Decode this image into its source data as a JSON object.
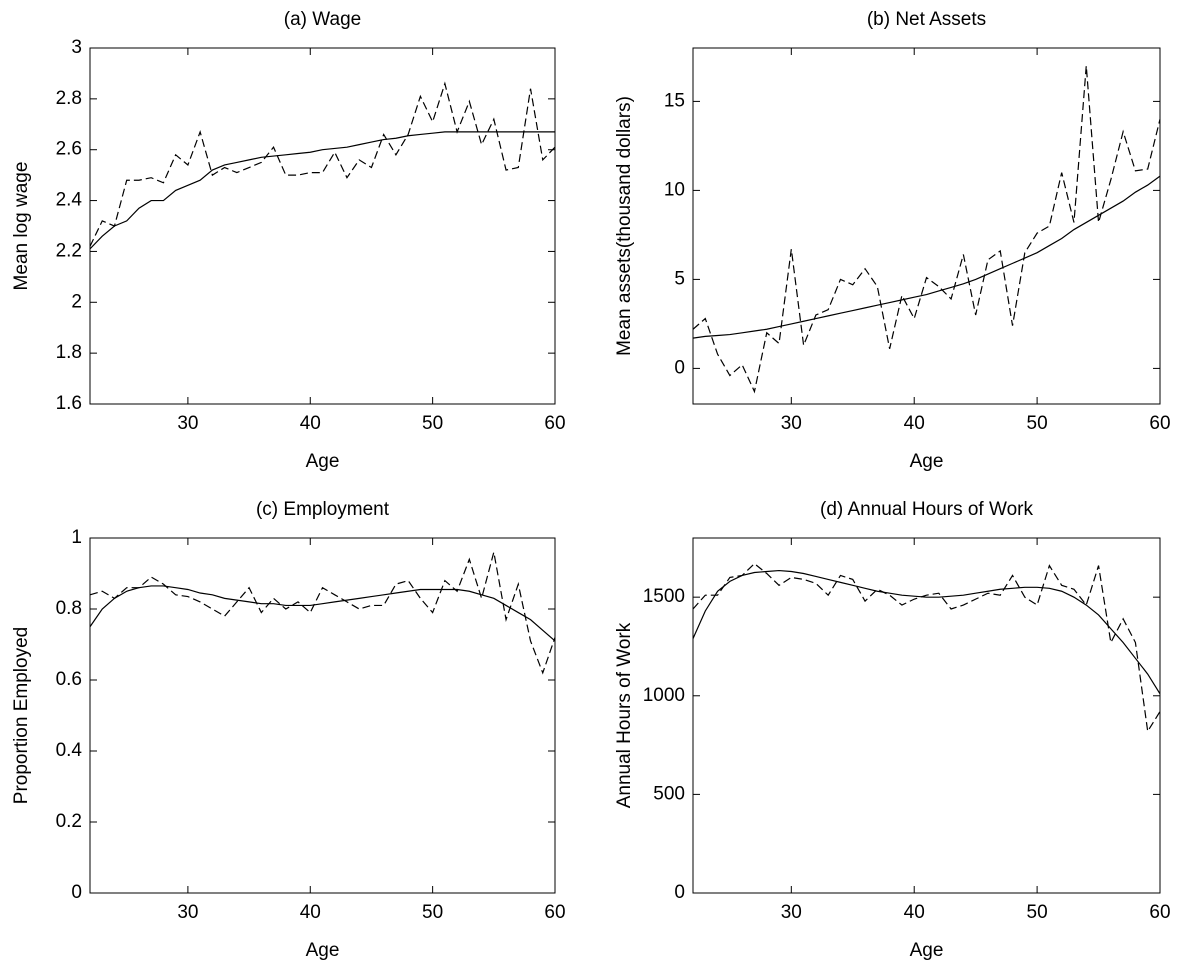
{
  "chart_data": [
    {
      "type": "line",
      "title": "(a) Wage",
      "x_label": "Age",
      "y_label": "Mean log wage",
      "x": [
        22,
        23,
        24,
        25,
        26,
        27,
        28,
        29,
        30,
        31,
        32,
        33,
        34,
        35,
        36,
        37,
        38,
        39,
        40,
        41,
        42,
        43,
        44,
        45,
        46,
        47,
        48,
        49,
        50,
        51,
        52,
        53,
        54,
        55,
        56,
        57,
        58,
        59,
        60
      ],
      "xlim": [
        22,
        60
      ],
      "xticks": [
        30,
        40,
        50,
        60
      ],
      "ylim": [
        1.6,
        3
      ],
      "yticks": [
        1.6,
        1.8,
        2,
        2.2,
        2.4,
        2.6,
        2.8,
        3
      ],
      "series": [
        {
          "color": "#000000",
          "dash": true,
          "values": [
            2.22,
            2.32,
            2.3,
            2.48,
            2.48,
            2.49,
            2.47,
            2.58,
            2.54,
            2.67,
            2.5,
            2.53,
            2.51,
            2.53,
            2.55,
            2.61,
            2.5,
            2.5,
            2.51,
            2.51,
            2.59,
            2.49,
            2.56,
            2.53,
            2.66,
            2.58,
            2.66,
            2.81,
            2.71,
            2.86,
            2.67,
            2.79,
            2.62,
            2.72,
            2.52,
            2.53,
            2.84,
            2.56,
            2.61
          ]
        },
        {
          "color": "#000000",
          "dash": false,
          "values": [
            2.21,
            2.26,
            2.3,
            2.32,
            2.37,
            2.4,
            2.4,
            2.44,
            2.46,
            2.48,
            2.52,
            2.54,
            2.55,
            2.56,
            2.57,
            2.575,
            2.58,
            2.585,
            2.59,
            2.6,
            2.605,
            2.61,
            2.62,
            2.63,
            2.64,
            2.645,
            2.655,
            2.66,
            2.665,
            2.67,
            2.67,
            2.67,
            2.67,
            2.67,
            2.67,
            2.67,
            2.67,
            2.67,
            2.67
          ]
        }
      ]
    },
    {
      "type": "line",
      "title": "(b) Net Assets",
      "x_label": "Age",
      "y_label": "Mean assets(thousand dollars)",
      "x": [
        22,
        23,
        24,
        25,
        26,
        27,
        28,
        29,
        30,
        31,
        32,
        33,
        34,
        35,
        36,
        37,
        38,
        39,
        40,
        41,
        42,
        43,
        44,
        45,
        46,
        47,
        48,
        49,
        50,
        51,
        52,
        53,
        54,
        55,
        56,
        57,
        58,
        59,
        60
      ],
      "xlim": [
        22,
        60
      ],
      "xticks": [
        30,
        40,
        50,
        60
      ],
      "ylim": [
        -2,
        18
      ],
      "yticks": [
        0,
        5,
        10,
        15
      ],
      "series": [
        {
          "color": "#000000",
          "dash": true,
          "values": [
            2.2,
            2.8,
            0.8,
            -0.4,
            0.2,
            -1.3,
            2.0,
            1.4,
            6.7,
            1.3,
            3.0,
            3.3,
            5.0,
            4.7,
            5.6,
            4.6,
            1.1,
            4.1,
            2.8,
            5.1,
            4.6,
            3.9,
            6.4,
            3.0,
            6.1,
            6.6,
            2.4,
            6.5,
            7.6,
            8.0,
            11.0,
            8.2,
            17.0,
            8.2,
            10.6,
            13.3,
            11.1,
            11.2,
            14.0
          ]
        },
        {
          "color": "#000000",
          "dash": false,
          "values": [
            1.7,
            1.8,
            1.85,
            1.9,
            2.0,
            2.1,
            2.2,
            2.35,
            2.5,
            2.65,
            2.8,
            2.95,
            3.1,
            3.25,
            3.4,
            3.55,
            3.7,
            3.85,
            4.0,
            4.15,
            4.35,
            4.55,
            4.75,
            5.0,
            5.3,
            5.6,
            5.9,
            6.2,
            6.5,
            6.9,
            7.3,
            7.8,
            8.2,
            8.6,
            9.0,
            9.4,
            9.9,
            10.3,
            10.8
          ]
        }
      ]
    },
    {
      "type": "line",
      "title": "(c) Employment",
      "x_label": "Age",
      "y_label": "Proportion Employed",
      "x": [
        22,
        23,
        24,
        25,
        26,
        27,
        28,
        29,
        30,
        31,
        32,
        33,
        34,
        35,
        36,
        37,
        38,
        39,
        40,
        41,
        42,
        43,
        44,
        45,
        46,
        47,
        48,
        49,
        50,
        51,
        52,
        53,
        54,
        55,
        56,
        57,
        58,
        59,
        60
      ],
      "xlim": [
        22,
        60
      ],
      "xticks": [
        30,
        40,
        50,
        60
      ],
      "ylim": [
        0,
        1
      ],
      "yticks": [
        0,
        0.2,
        0.4,
        0.6,
        0.8,
        1
      ],
      "series": [
        {
          "color": "#000000",
          "dash": true,
          "values": [
            0.84,
            0.85,
            0.83,
            0.86,
            0.86,
            0.89,
            0.87,
            0.84,
            0.835,
            0.82,
            0.8,
            0.78,
            0.82,
            0.86,
            0.79,
            0.83,
            0.8,
            0.82,
            0.79,
            0.86,
            0.84,
            0.82,
            0.8,
            0.81,
            0.81,
            0.87,
            0.88,
            0.83,
            0.79,
            0.88,
            0.85,
            0.94,
            0.83,
            0.96,
            0.77,
            0.87,
            0.71,
            0.62,
            0.72
          ]
        },
        {
          "color": "#000000",
          "dash": false,
          "values": [
            0.75,
            0.8,
            0.83,
            0.85,
            0.86,
            0.865,
            0.865,
            0.86,
            0.855,
            0.845,
            0.84,
            0.83,
            0.825,
            0.82,
            0.815,
            0.815,
            0.81,
            0.81,
            0.81,
            0.815,
            0.82,
            0.825,
            0.83,
            0.835,
            0.84,
            0.845,
            0.85,
            0.855,
            0.855,
            0.855,
            0.855,
            0.85,
            0.84,
            0.83,
            0.81,
            0.79,
            0.77,
            0.74,
            0.71
          ]
        }
      ]
    },
    {
      "type": "line",
      "title": "(d) Annual Hours of Work",
      "x_label": "Age",
      "y_label": "Annual Hours of Work",
      "x": [
        22,
        23,
        24,
        25,
        26,
        27,
        28,
        29,
        30,
        31,
        32,
        33,
        34,
        35,
        36,
        37,
        38,
        39,
        40,
        41,
        42,
        43,
        44,
        45,
        46,
        47,
        48,
        49,
        50,
        51,
        52,
        53,
        54,
        55,
        56,
        57,
        58,
        59,
        60
      ],
      "xlim": [
        22,
        60
      ],
      "xticks": [
        30,
        40,
        50,
        60
      ],
      "ylim": [
        0,
        1800
      ],
      "yticks": [
        0,
        500,
        1000,
        1500
      ],
      "series": [
        {
          "color": "#000000",
          "dash": true,
          "values": [
            1440,
            1510,
            1510,
            1600,
            1610,
            1670,
            1620,
            1560,
            1600,
            1590,
            1570,
            1510,
            1610,
            1590,
            1480,
            1540,
            1510,
            1460,
            1490,
            1510,
            1520,
            1440,
            1460,
            1490,
            1520,
            1510,
            1610,
            1500,
            1460,
            1660,
            1560,
            1540,
            1460,
            1660,
            1270,
            1390,
            1270,
            820,
            920
          ]
        },
        {
          "color": "#000000",
          "dash": false,
          "values": [
            1290,
            1430,
            1530,
            1580,
            1610,
            1625,
            1630,
            1635,
            1630,
            1620,
            1605,
            1590,
            1575,
            1560,
            1545,
            1530,
            1520,
            1510,
            1505,
            1500,
            1500,
            1505,
            1510,
            1520,
            1530,
            1540,
            1545,
            1550,
            1550,
            1545,
            1530,
            1500,
            1460,
            1410,
            1340,
            1270,
            1190,
            1110,
            1010
          ]
        }
      ]
    }
  ]
}
